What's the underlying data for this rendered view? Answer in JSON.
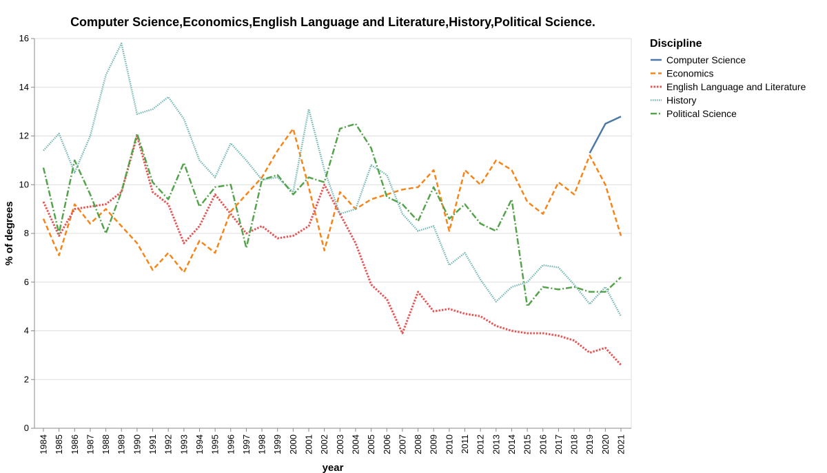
{
  "chart_data": {
    "type": "line",
    "title": "Computer Science,Economics,English Language and Literature,History,Political Science.",
    "xlabel": "year",
    "ylabel": "% of degrees",
    "ylim": [
      0,
      16
    ],
    "yticks": [
      0,
      2,
      4,
      6,
      8,
      10,
      12,
      14,
      16
    ],
    "grid": true,
    "legend_title": "Discipline",
    "legend_position": "right",
    "x": [
      1984,
      1985,
      1986,
      1987,
      1988,
      1989,
      1990,
      1991,
      1992,
      1993,
      1994,
      1995,
      1996,
      1997,
      1998,
      1999,
      2000,
      2001,
      2002,
      2003,
      2004,
      2005,
      2006,
      2007,
      2008,
      2009,
      2010,
      2011,
      2012,
      2013,
      2014,
      2015,
      2016,
      2017,
      2018,
      2019,
      2020,
      2021
    ],
    "series": [
      {
        "name": "Computer Science",
        "color": "#4c78a8",
        "dash": "solid",
        "values": [
          null,
          null,
          null,
          null,
          null,
          null,
          null,
          null,
          null,
          null,
          null,
          null,
          null,
          null,
          null,
          null,
          null,
          null,
          null,
          null,
          null,
          null,
          null,
          null,
          null,
          null,
          null,
          null,
          null,
          null,
          null,
          null,
          null,
          null,
          null,
          11.3,
          12.5,
          12.8
        ]
      },
      {
        "name": "Economics",
        "color": "#f58518",
        "dash": "dashed",
        "values": [
          8.6,
          7.1,
          9.2,
          8.4,
          9.0,
          8.3,
          7.6,
          6.5,
          7.2,
          6.4,
          7.7,
          7.2,
          8.9,
          9.6,
          10.3,
          11.4,
          12.3,
          9.9,
          7.3,
          9.7,
          9.0,
          9.4,
          9.6,
          9.8,
          9.9,
          10.6,
          8.1,
          10.6,
          10.0,
          11.0,
          10.6,
          9.3,
          8.8,
          10.1,
          9.6,
          11.2,
          10.0,
          7.9
        ]
      },
      {
        "name": "English Language and Literature",
        "color": "#e45756",
        "dash": "dotted",
        "values": [
          9.3,
          7.9,
          9.0,
          9.1,
          9.2,
          9.7,
          12.0,
          9.7,
          9.2,
          7.6,
          8.3,
          9.6,
          8.8,
          8.0,
          8.3,
          7.8,
          7.9,
          8.3,
          10.0,
          8.8,
          7.6,
          5.9,
          5.3,
          3.9,
          5.6,
          4.8,
          4.9,
          4.7,
          4.6,
          4.2,
          4.0,
          3.9,
          3.9,
          3.8,
          3.6,
          3.1,
          3.3,
          2.6
        ]
      },
      {
        "name": "History",
        "color": "#72b7b2",
        "dash": "dotted-fine",
        "values": [
          11.4,
          12.1,
          10.5,
          12.0,
          14.5,
          15.8,
          12.9,
          13.1,
          13.6,
          12.7,
          11.0,
          10.3,
          11.7,
          11.0,
          10.2,
          10.3,
          9.7,
          13.1,
          10.6,
          8.8,
          9.0,
          10.8,
          10.4,
          8.8,
          8.1,
          8.3,
          6.7,
          7.2,
          6.1,
          5.2,
          5.8,
          6.0,
          6.7,
          6.6,
          5.9,
          5.1,
          5.8,
          4.6
        ]
      },
      {
        "name": "Political Science",
        "color": "#54a24b",
        "dash": "dashdot",
        "values": [
          10.7,
          8.0,
          11.0,
          9.6,
          8.0,
          9.7,
          12.1,
          10.1,
          9.4,
          10.9,
          9.1,
          9.9,
          10.0,
          7.4,
          10.2,
          10.4,
          9.6,
          10.3,
          10.1,
          12.3,
          12.5,
          11.5,
          9.5,
          9.2,
          8.5,
          9.9,
          8.6,
          9.2,
          8.4,
          8.1,
          9.4,
          5.0,
          5.8,
          5.7,
          5.8,
          5.6,
          5.6,
          6.2
        ]
      }
    ]
  }
}
